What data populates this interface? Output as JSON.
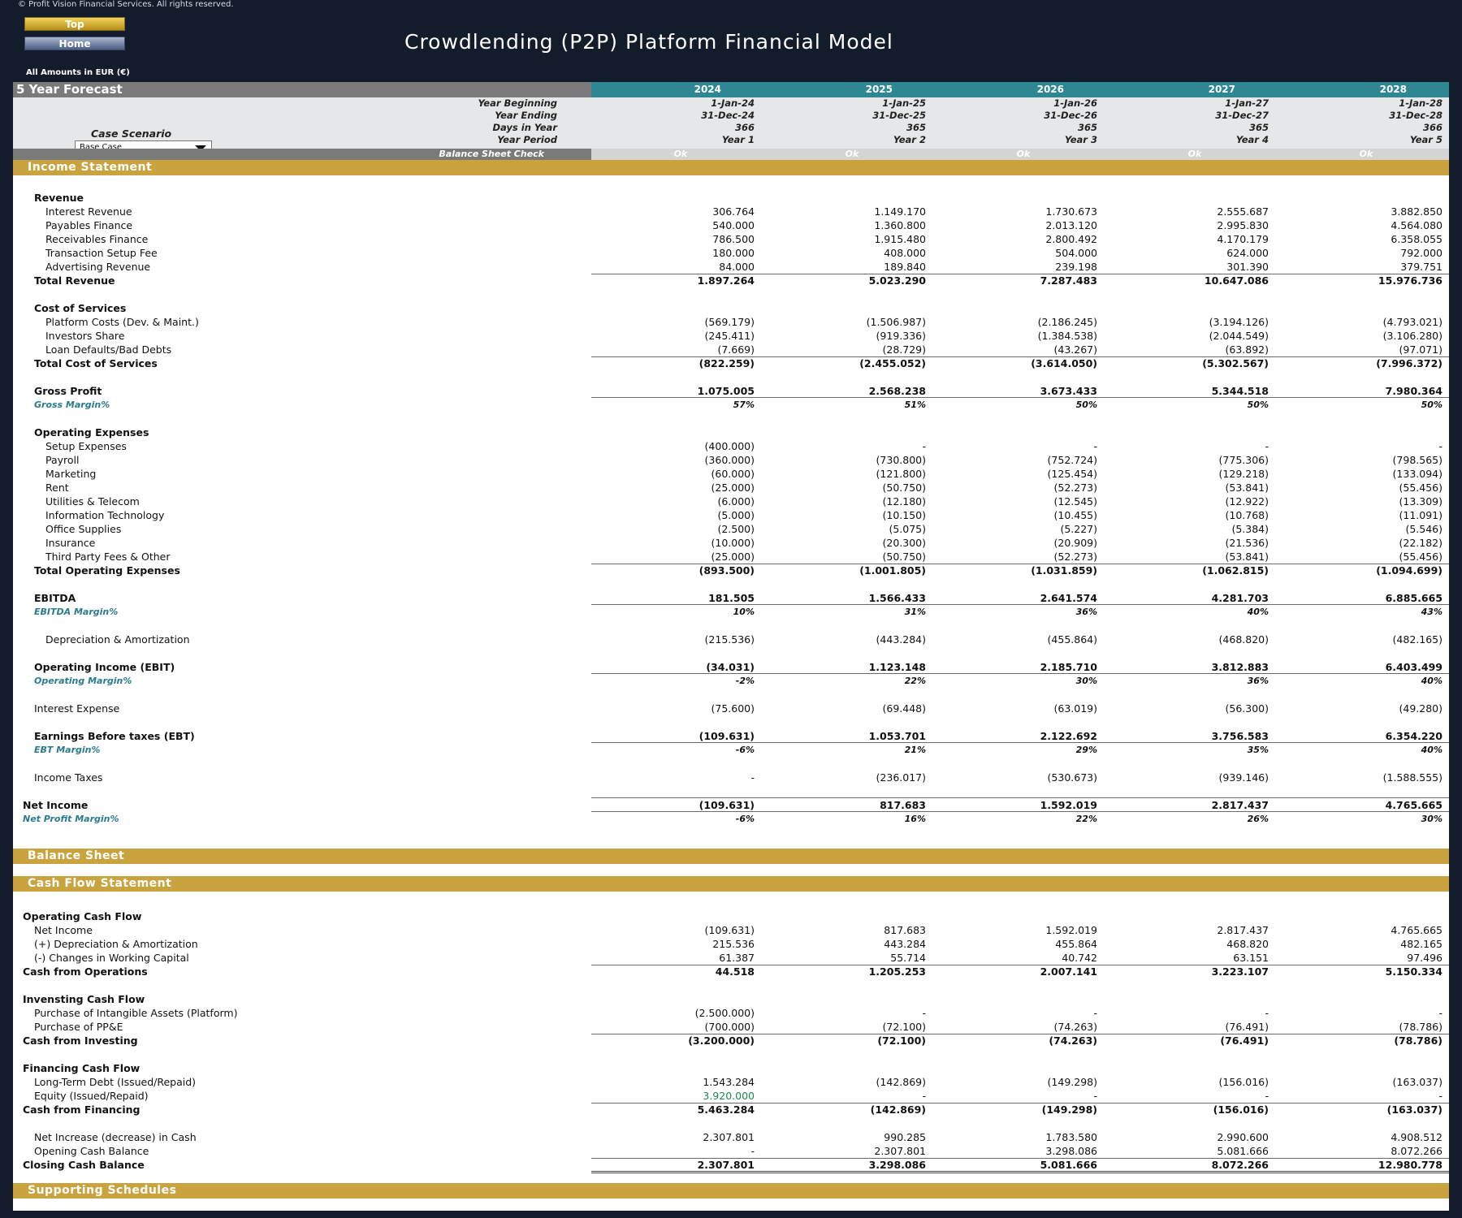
{
  "header": {
    "copyright": "© Profit Vision Financial Services. All rights reserved.",
    "top_button": "Top",
    "home_button": "Home",
    "title": "Crowdlending (P2P) Platform Financial Model",
    "amounts_label": "All Amounts in  EUR (€)"
  },
  "forecast": {
    "title": "5 Year Forecast",
    "years": [
      "2024",
      "2025",
      "2026",
      "2027",
      "2028"
    ],
    "case_label": "Case Scenario",
    "case_value": "Base Case",
    "meta": [
      {
        "label": "Year Beginning",
        "values": [
          "1-Jan-24",
          "1-Jan-25",
          "1-Jan-26",
          "1-Jan-27",
          "1-Jan-28"
        ]
      },
      {
        "label": "Year Ending",
        "values": [
          "31-Dec-24",
          "31-Dec-25",
          "31-Dec-26",
          "31-Dec-27",
          "31-Dec-28"
        ]
      },
      {
        "label": "Days in Year",
        "values": [
          "366",
          "365",
          "365",
          "365",
          "366"
        ]
      },
      {
        "label": "Year Period",
        "values": [
          "Year 1",
          "Year 2",
          "Year 3",
          "Year 4",
          "Year 5"
        ]
      }
    ],
    "check_label": "Balance Sheet Check",
    "check_values": [
      "Ok",
      "Ok",
      "Ok",
      "Ok",
      "Ok"
    ]
  },
  "sections": {
    "income": "Income Statement",
    "balance": "Balance Sheet",
    "cashflow": "Cash Flow Statement",
    "supporting": "Supporting Schedules"
  },
  "income_rows": [
    {
      "label": "Revenue",
      "type": "heading",
      "indent": 1
    },
    {
      "label": "Interest Revenue",
      "indent": 2,
      "values": [
        "306.764",
        "1.149.170",
        "1.730.673",
        "2.555.687",
        "3.882.850"
      ]
    },
    {
      "label": "Payables Finance",
      "indent": 2,
      "values": [
        "540.000",
        "1.360.800",
        "2.013.120",
        "2.995.830",
        "4.564.080"
      ]
    },
    {
      "label": "Receivables Finance",
      "indent": 2,
      "values": [
        "786.500",
        "1.915.480",
        "2.800.492",
        "4.170.179",
        "6.358.055"
      ]
    },
    {
      "label": "Transaction Setup Fee",
      "indent": 2,
      "values": [
        "180.000",
        "408.000",
        "504.000",
        "624.000",
        "792.000"
      ]
    },
    {
      "label": "Advertising Revenue",
      "indent": 2,
      "values": [
        "84.000",
        "189.840",
        "239.198",
        "301.390",
        "379.751"
      ]
    },
    {
      "label": "Total Revenue",
      "type": "total",
      "indent": 1,
      "values": [
        "1.897.264",
        "5.023.290",
        "7.287.483",
        "10.647.086",
        "15.976.736"
      ]
    },
    {
      "type": "blank"
    },
    {
      "label": "Cost of Services",
      "type": "heading",
      "indent": 1
    },
    {
      "label": "Platform Costs (Dev. & Maint.)",
      "indent": 2,
      "values": [
        "(569.179)",
        "(1.506.987)",
        "(2.186.245)",
        "(3.194.126)",
        "(4.793.021)"
      ]
    },
    {
      "label": "Investors Share",
      "indent": 2,
      "values": [
        "(245.411)",
        "(919.336)",
        "(1.384.538)",
        "(2.044.549)",
        "(3.106.280)"
      ]
    },
    {
      "label": "Loan Defaults/Bad Debts",
      "indent": 2,
      "values": [
        "(7.669)",
        "(28.729)",
        "(43.267)",
        "(63.892)",
        "(97.071)"
      ]
    },
    {
      "label": "Total Cost of Services",
      "type": "total",
      "indent": 1,
      "values": [
        "(822.259)",
        "(2.455.052)",
        "(3.614.050)",
        "(5.302.567)",
        "(7.996.372)"
      ]
    },
    {
      "type": "blank"
    },
    {
      "label": "Gross Profit",
      "type": "boldline",
      "indent": 1,
      "values": [
        "1.075.005",
        "2.568.238",
        "3.673.433",
        "5.344.518",
        "7.980.364"
      ]
    },
    {
      "label": "Gross Margin%",
      "type": "pct",
      "indent": 1,
      "values": [
        "57%",
        "51%",
        "50%",
        "50%",
        "50%"
      ]
    },
    {
      "type": "blank"
    },
    {
      "label": "Operating Expenses",
      "type": "heading",
      "indent": 1
    },
    {
      "label": "Setup Expenses",
      "indent": 2,
      "values": [
        "(400.000)",
        "-",
        "-",
        "-",
        "-"
      ]
    },
    {
      "label": "Payroll",
      "indent": 2,
      "values": [
        "(360.000)",
        "(730.800)",
        "(752.724)",
        "(775.306)",
        "(798.565)"
      ]
    },
    {
      "label": "Marketing",
      "indent": 2,
      "values": [
        "(60.000)",
        "(121.800)",
        "(125.454)",
        "(129.218)",
        "(133.094)"
      ]
    },
    {
      "label": "Rent",
      "indent": 2,
      "values": [
        "(25.000)",
        "(50.750)",
        "(52.273)",
        "(53.841)",
        "(55.456)"
      ]
    },
    {
      "label": "Utilities & Telecom",
      "indent": 2,
      "values": [
        "(6.000)",
        "(12.180)",
        "(12.545)",
        "(12.922)",
        "(13.309)"
      ]
    },
    {
      "label": "Information Technology",
      "indent": 2,
      "values": [
        "(5.000)",
        "(10.150)",
        "(10.455)",
        "(10.768)",
        "(11.091)"
      ]
    },
    {
      "label": "Office Supplies",
      "indent": 2,
      "values": [
        "(2.500)",
        "(5.075)",
        "(5.227)",
        "(5.384)",
        "(5.546)"
      ]
    },
    {
      "label": "Insurance",
      "indent": 2,
      "values": [
        "(10.000)",
        "(20.300)",
        "(20.909)",
        "(21.536)",
        "(22.182)"
      ]
    },
    {
      "label": "Third Party Fees & Other",
      "indent": 2,
      "values": [
        "(25.000)",
        "(50.750)",
        "(52.273)",
        "(53.841)",
        "(55.456)"
      ]
    },
    {
      "label": "Total Operating Expenses",
      "type": "total",
      "indent": 1,
      "values": [
        "(893.500)",
        "(1.001.805)",
        "(1.031.859)",
        "(1.062.815)",
        "(1.094.699)"
      ]
    },
    {
      "type": "blank"
    },
    {
      "label": "EBITDA",
      "type": "boldline",
      "indent": 1,
      "values": [
        "181.505",
        "1.566.433",
        "2.641.574",
        "4.281.703",
        "6.885.665"
      ]
    },
    {
      "label": "EBITDA Margin%",
      "type": "pct",
      "indent": 1,
      "values": [
        "10%",
        "31%",
        "36%",
        "40%",
        "43%"
      ]
    },
    {
      "type": "blank"
    },
    {
      "label": "Depreciation & Amortization",
      "indent": 2,
      "values": [
        "(215.536)",
        "(443.284)",
        "(455.864)",
        "(468.820)",
        "(482.165)"
      ]
    },
    {
      "type": "blank"
    },
    {
      "label": "Operating Income (EBIT)",
      "type": "boldline",
      "indent": 1,
      "values": [
        "(34.031)",
        "1.123.148",
        "2.185.710",
        "3.812.883",
        "6.403.499"
      ]
    },
    {
      "label": "Operating Margin%",
      "type": "pct",
      "indent": 1,
      "values": [
        "-2%",
        "22%",
        "30%",
        "36%",
        "40%"
      ]
    },
    {
      "type": "blank"
    },
    {
      "label": "Interest Expense",
      "indent": 1,
      "values": [
        "(75.600)",
        "(69.448)",
        "(63.019)",
        "(56.300)",
        "(49.280)"
      ]
    },
    {
      "type": "blank"
    },
    {
      "label": "Earnings Before taxes (EBT)",
      "type": "boldline",
      "indent": 1,
      "values": [
        "(109.631)",
        "1.053.701",
        "2.122.692",
        "3.756.583",
        "6.354.220"
      ]
    },
    {
      "label": "EBT Margin%",
      "type": "pct",
      "indent": 1,
      "values": [
        "-6%",
        "21%",
        "29%",
        "35%",
        "40%"
      ]
    },
    {
      "type": "blank"
    },
    {
      "label": "Income Taxes",
      "indent": 1,
      "values": [
        "-",
        "(236.017)",
        "(530.673)",
        "(939.146)",
        "(1.588.555)"
      ]
    },
    {
      "type": "blank"
    },
    {
      "label": "Net Income",
      "type": "netincome",
      "indent": 0,
      "values": [
        "(109.631)",
        "817.683",
        "1.592.019",
        "2.817.437",
        "4.765.665"
      ]
    },
    {
      "label": "Net Profit Margin%",
      "type": "pct",
      "indent": 0,
      "values": [
        "-6%",
        "16%",
        "22%",
        "26%",
        "30%"
      ]
    }
  ],
  "cash_rows": [
    {
      "label": "Operating Cash Flow",
      "type": "heading",
      "indent": 0
    },
    {
      "label": "Net Income",
      "indent": 1,
      "values": [
        "(109.631)",
        "817.683",
        "1.592.019",
        "2.817.437",
        "4.765.665"
      ]
    },
    {
      "label": "(+) Depreciation & Amortization",
      "indent": 1,
      "values": [
        "215.536",
        "443.284",
        "455.864",
        "468.820",
        "482.165"
      ]
    },
    {
      "label": "(-) Changes in Working Capital",
      "indent": 1,
      "values": [
        "61.387",
        "55.714",
        "40.742",
        "63.151",
        "97.496"
      ]
    },
    {
      "label": "Cash from Operations",
      "type": "total",
      "indent": 0,
      "values": [
        "44.518",
        "1.205.253",
        "2.007.141",
        "3.223.107",
        "5.150.334"
      ]
    },
    {
      "type": "blank"
    },
    {
      "label": "Invensting Cash Flow",
      "type": "heading",
      "indent": 0
    },
    {
      "label": "Purchase of Intangible Assets (Platform)",
      "indent": 1,
      "values": [
        "(2.500.000)",
        "-",
        "-",
        "-",
        "-"
      ]
    },
    {
      "label": "Purchase of PP&E",
      "indent": 1,
      "values": [
        "(700.000)",
        "(72.100)",
        "(74.263)",
        "(76.491)",
        "(78.786)"
      ]
    },
    {
      "label": "Cash from Investing",
      "type": "total",
      "indent": 0,
      "values": [
        "(3.200.000)",
        "(72.100)",
        "(74.263)",
        "(76.491)",
        "(78.786)"
      ]
    },
    {
      "type": "blank"
    },
    {
      "label": "Financing Cash Flow",
      "type": "heading",
      "indent": 0
    },
    {
      "label": "Long-Term Debt (Issued/Repaid)",
      "indent": 1,
      "values": [
        "1.543.284",
        "(142.869)",
        "(149.298)",
        "(156.016)",
        "(163.037)"
      ]
    },
    {
      "label": "Equity (Issued/Repaid)",
      "indent": 1,
      "green_first": true,
      "values": [
        "3.920.000",
        "-",
        "-",
        "-",
        "-"
      ]
    },
    {
      "label": "Cash from Financing",
      "type": "total",
      "indent": 0,
      "values": [
        "5.463.284",
        "(142.869)",
        "(149.298)",
        "(156.016)",
        "(163.037)"
      ]
    },
    {
      "type": "blank"
    },
    {
      "label": "Net Increase (decrease) in Cash",
      "indent": 1,
      "values": [
        "2.307.801",
        "990.285",
        "1.783.580",
        "2.990.600",
        "4.908.512"
      ]
    },
    {
      "label": "Opening Cash Balance",
      "indent": 1,
      "values": [
        "-",
        "2.307.801",
        "3.298.086",
        "5.081.666",
        "8.072.266"
      ]
    },
    {
      "label": "Closing Cash Balance",
      "type": "closing",
      "indent": 0,
      "values": [
        "2.307.801",
        "3.298.086",
        "5.081.666",
        "8.072.266",
        "12.980.778"
      ]
    }
  ]
}
